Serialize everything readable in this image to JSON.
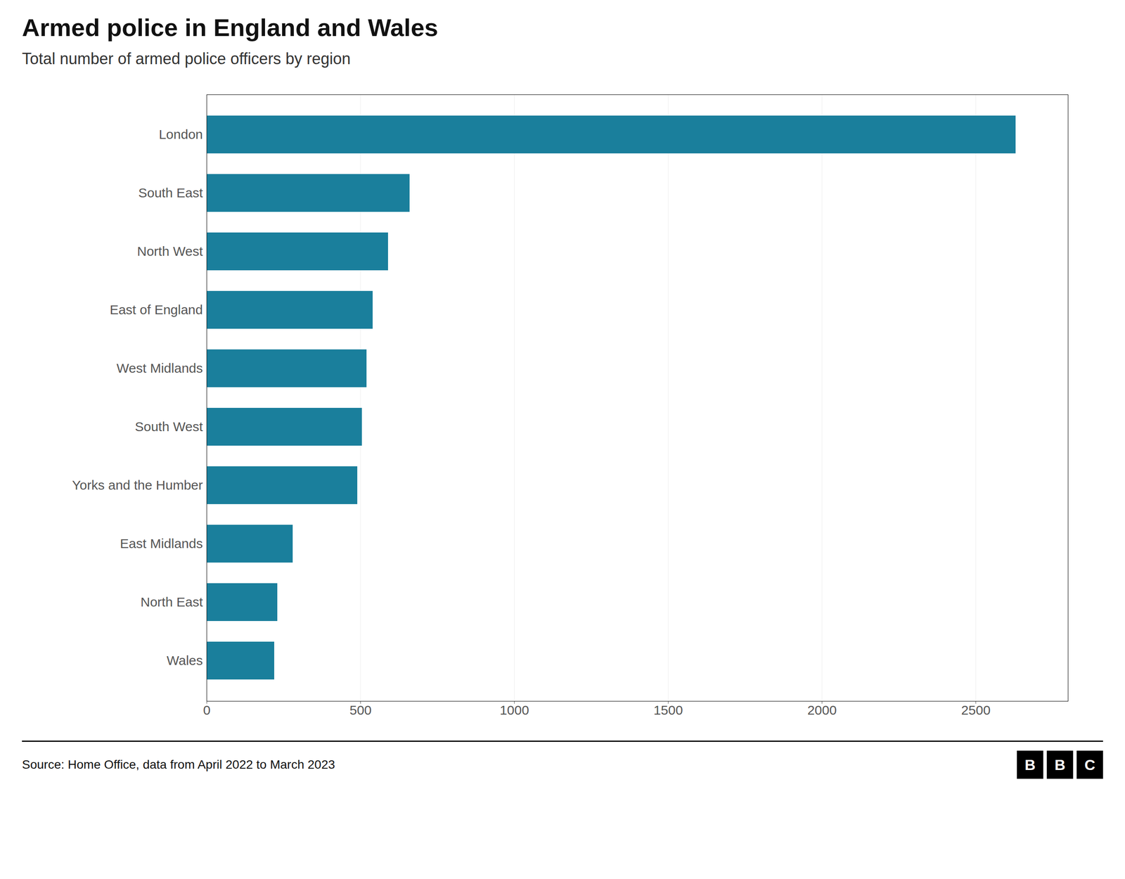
{
  "chart_data": {
    "type": "bar",
    "orientation": "horizontal",
    "title": "Armed police in England and Wales",
    "subtitle": "Total number of armed police officers by region",
    "source": "Source: Home Office, data from April 2022 to March 2023",
    "annotations": [
      "B",
      "B",
      "C"
    ],
    "categories": [
      "London",
      "South East",
      "North West",
      "East of England",
      "West Midlands",
      "South West",
      "Yorks and the Humber",
      "East Midlands",
      "North East",
      "Wales"
    ],
    "values": [
      2630,
      660,
      590,
      540,
      520,
      505,
      490,
      280,
      230,
      220
    ],
    "color": "#1a7f9c",
    "xlim": [
      0,
      2800
    ],
    "xticks": [
      0,
      500,
      1000,
      1500,
      2000,
      2500
    ],
    "grid": true
  }
}
